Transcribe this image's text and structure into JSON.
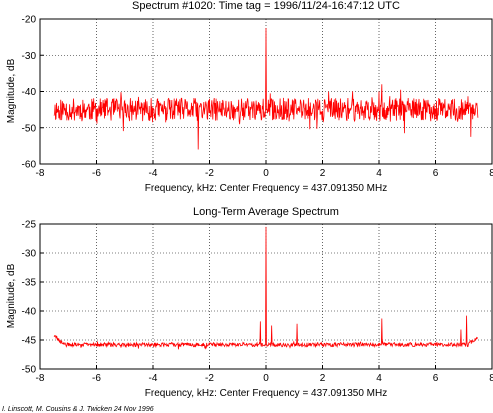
{
  "chart_data": [
    {
      "type": "line",
      "title": "Spectrum #1020: Time tag =  1996/11/24-16:47:12 UTC",
      "xlabel": "Frequency, kHz:  Center Frequency = 437.091350 MHz",
      "ylabel": "Magnitude, dB",
      "xlim": [
        -8,
        8
      ],
      "ylim": [
        -60,
        -20
      ],
      "xticks": [
        "-8",
        "-6",
        "-4",
        "-2",
        "0",
        "2",
        "4",
        "6",
        "8"
      ],
      "yticks": [
        "-60",
        "-50",
        "-40",
        "-30",
        "-20"
      ],
      "grid": true,
      "color": "#ff0000",
      "series": [
        {
          "name": "",
          "x_range": [
            -7.5,
            7.5
          ],
          "baseline": -45,
          "noise_spread": 3.2,
          "spikes": [
            {
              "x": 0.0,
              "y": -22.5
            },
            {
              "x": 4.1,
              "y": -38
            },
            {
              "x": 4.0,
              "y": -40
            },
            {
              "x": -2.4,
              "y": -56
            },
            {
              "x": 7.25,
              "y": -52.5
            },
            {
              "x": 4.9,
              "y": -51.5
            }
          ]
        }
      ]
    },
    {
      "type": "line",
      "title": "Long-Term Average Spectrum",
      "xlabel": "Frequency, kHz:  Center Frequency = 437.091350 MHz",
      "ylabel": "Magnitude, dB",
      "xlim": [
        -8,
        8
      ],
      "ylim": [
        -50,
        -25
      ],
      "xticks": [
        "-8",
        "-6",
        "-4",
        "-2",
        "0",
        "2",
        "4",
        "6",
        "8"
      ],
      "yticks": [
        "-50",
        "-45",
        "-40",
        "-35",
        "-30",
        "-25"
      ],
      "grid": true,
      "color": "#ff0000",
      "series": [
        {
          "name": "",
          "x_range": [
            -7.5,
            7.5
          ],
          "baseline": -45.8,
          "noise_spread": 0.35,
          "edge_rise": [
            {
              "x": -7.5,
              "y": -44.3
            },
            {
              "x": 7.5,
              "y": -44.5
            }
          ],
          "spikes": [
            {
              "x": 0.0,
              "y": -25.5
            },
            {
              "x": -0.2,
              "y": -41.8
            },
            {
              "x": 0.2,
              "y": -42.5
            },
            {
              "x": 1.1,
              "y": -42.2
            },
            {
              "x": 4.1,
              "y": -41.3
            },
            {
              "x": 7.1,
              "y": -40.8
            },
            {
              "x": 6.9,
              "y": -43.2
            }
          ]
        }
      ]
    }
  ],
  "credit": "I. Linscott, M. Cousins & J. Twicken  24 Nov 1996"
}
